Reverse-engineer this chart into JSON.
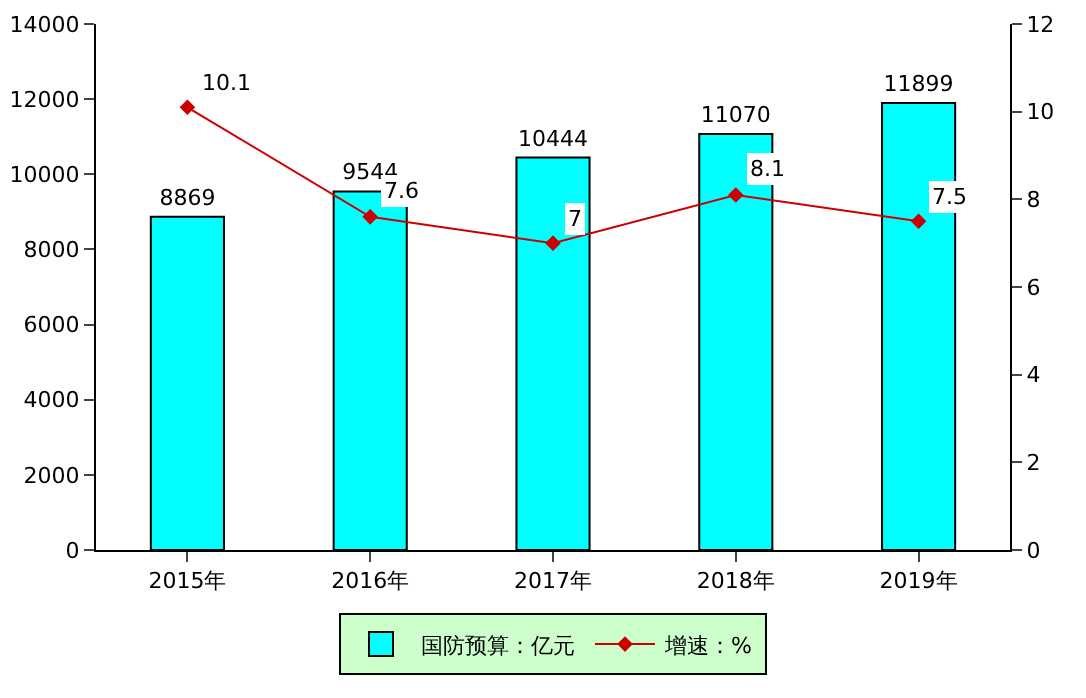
{
  "chart_data": {
    "type": "bar",
    "categories": [
      "2015年",
      "2016年",
      "2017年",
      "2018年",
      "2019年"
    ],
    "series": [
      {
        "name": "国防预算：亿元",
        "color": "#00ffff",
        "values": [
          8869,
          9544,
          10444,
          11070,
          11899
        ]
      },
      {
        "name": "增速：%",
        "type": "line",
        "axis": "y2",
        "color": "#cc0000",
        "values": [
          10.1,
          7.6,
          7,
          8.1,
          7.5
        ]
      }
    ],
    "ylim": [
      0,
      14000
    ],
    "yticks": [
      0,
      2000,
      4000,
      6000,
      8000,
      10000,
      12000,
      14000
    ],
    "y2lim": [
      0,
      12
    ],
    "y2ticks": [
      0,
      2,
      4,
      6,
      8,
      10,
      12
    ],
    "data_labels": true,
    "grid": false,
    "legend": "bottom",
    "marker": "diamond",
    "line_style": "solid"
  }
}
